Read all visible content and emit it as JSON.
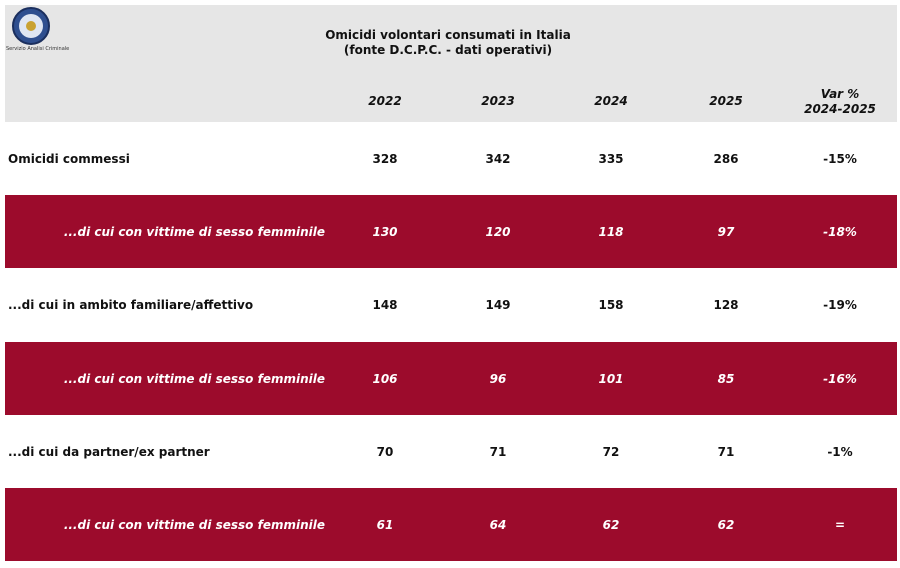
{
  "header": {
    "logo_text": "Servizio Analisi Criminale",
    "title": "Omicidi volontari consumati in Italia",
    "subtitle": "(fonte D.C.P.C. - dati operativi)"
  },
  "table": {
    "columns": [
      "2022",
      "2023",
      "2024",
      "2025"
    ],
    "var_header": [
      "Var %",
      "2024-2025"
    ],
    "rows": [
      {
        "label": "Omicidi commessi",
        "highlight": false,
        "values": [
          328,
          342,
          335,
          286
        ],
        "var": "-15%"
      },
      {
        "label": "...di cui con vittime di sesso femminile",
        "highlight": true,
        "values": [
          130,
          120,
          118,
          97
        ],
        "var": "-18%"
      },
      {
        "label": "...di cui in ambito familiare/affettivo",
        "highlight": false,
        "values": [
          148,
          149,
          158,
          128
        ],
        "var": "-19%"
      },
      {
        "label": "...di cui con vittime di sesso femminile",
        "highlight": true,
        "values": [
          106,
          96,
          101,
          85
        ],
        "var": "-16%"
      },
      {
        "label": "...di cui da partner/ex partner",
        "highlight": false,
        "values": [
          70,
          71,
          72,
          71
        ],
        "var": "-1%"
      },
      {
        "label": "...di cui con vittime di sesso femminile",
        "highlight": true,
        "values": [
          61,
          64,
          62,
          62
        ],
        "var": "="
      }
    ]
  }
}
